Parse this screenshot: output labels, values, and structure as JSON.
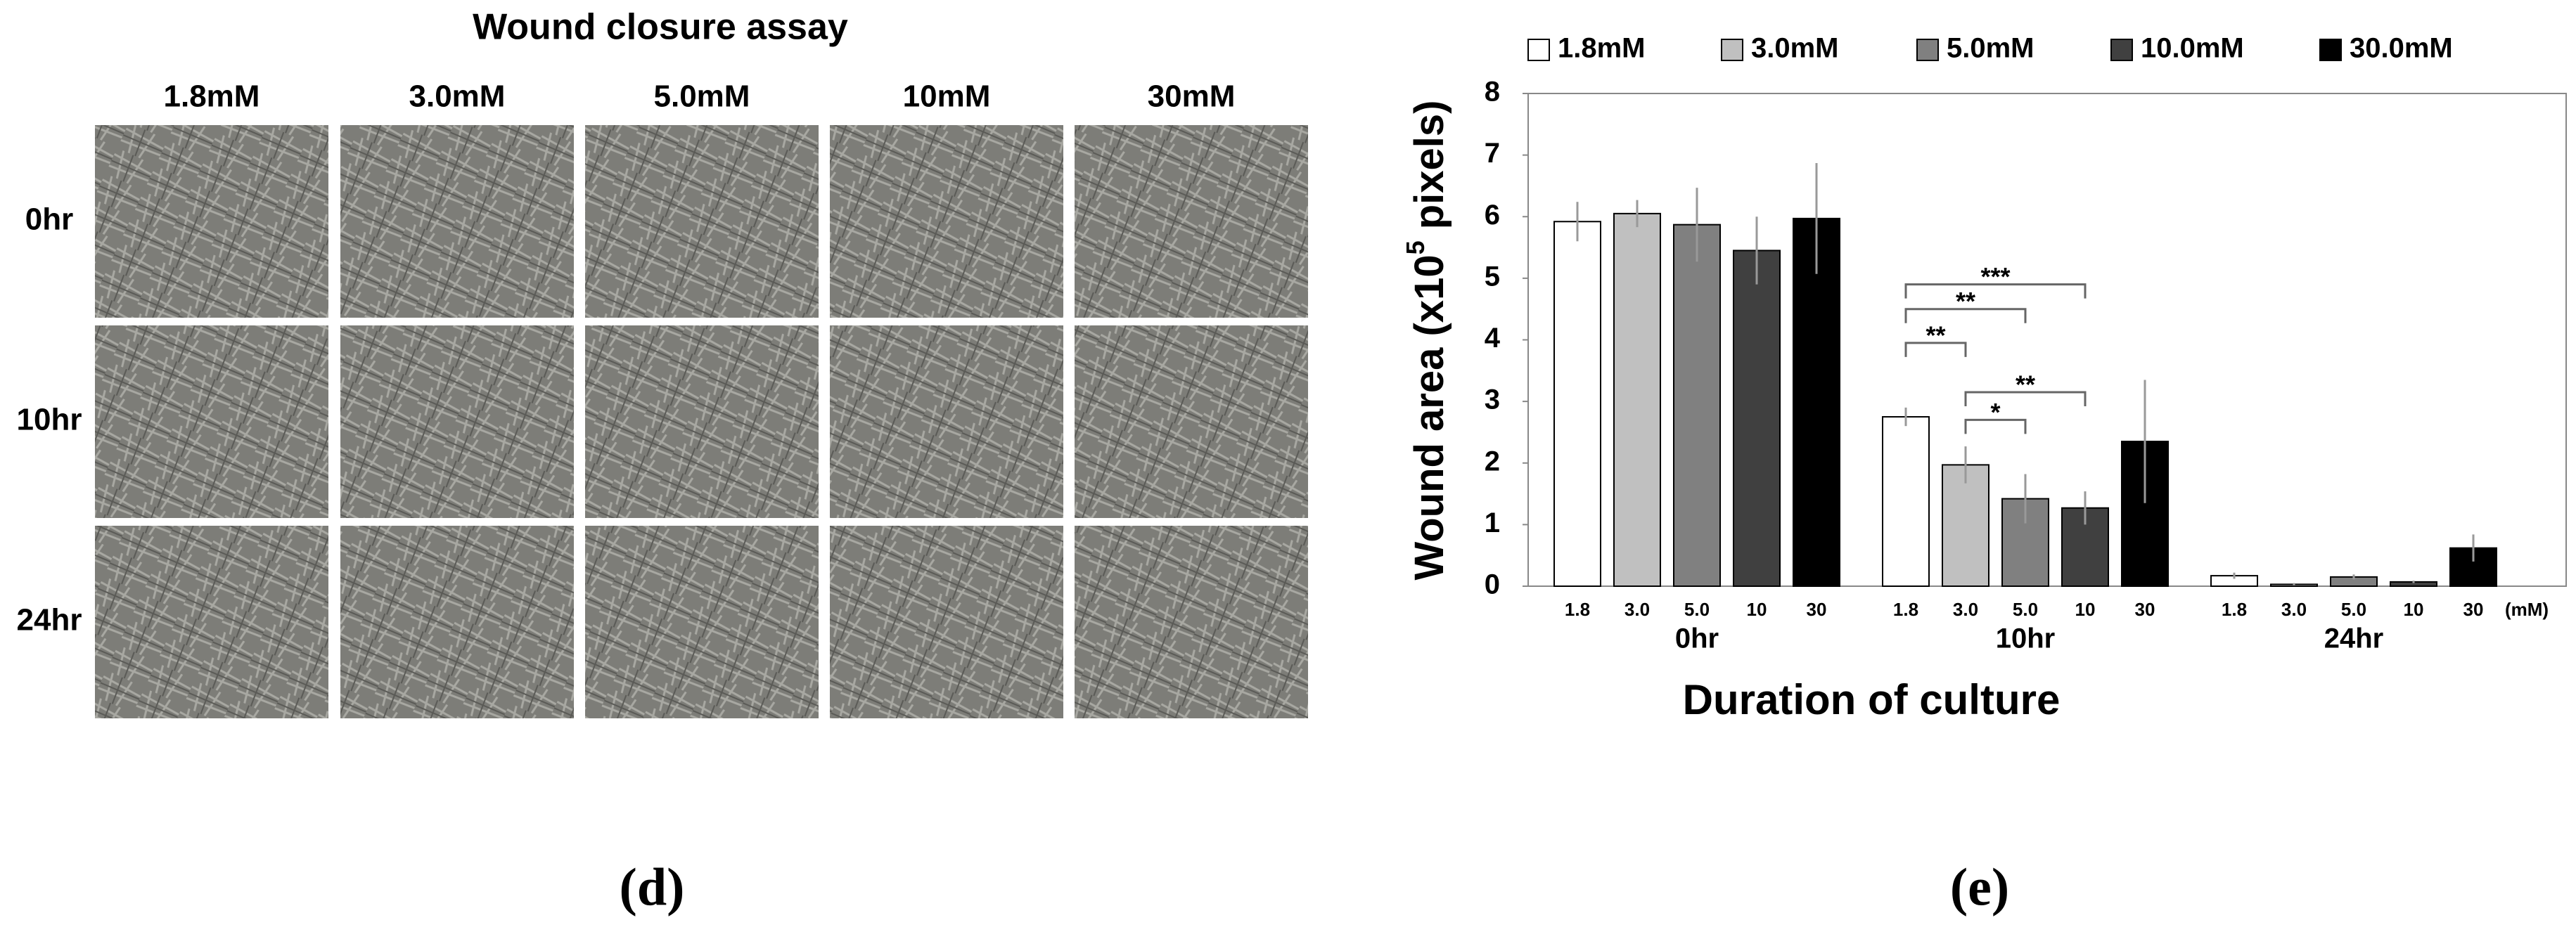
{
  "panel_d": {
    "title": "Wound closure assay",
    "columns": [
      "1.8mM",
      "3.0mM",
      "5.0mM",
      "10mM",
      "30mM"
    ],
    "rows": [
      "0hr",
      "10hr",
      "24hr"
    ],
    "caption": "(d)"
  },
  "chart_data": {
    "type": "bar",
    "ylabel": {
      "prefix": "Wound area (x10",
      "superscript": "5",
      "suffix": " pixels)"
    },
    "xlabel": "Duration of culture",
    "categories": [
      "0hr",
      "10hr",
      "24hr"
    ],
    "bar_labels": [
      "1.8",
      "3.0",
      "5.0",
      "10",
      "30"
    ],
    "unit_label": "(mM)",
    "series": [
      {
        "name": "1.8mM",
        "color": "#ffffff",
        "values": [
          5.92,
          2.75,
          0.17
        ],
        "errors": [
          0.32,
          0.15,
          0.05
        ]
      },
      {
        "name": "3.0mM",
        "color": "#c0c0c0",
        "values": [
          6.05,
          1.97,
          0.03
        ],
        "errors": [
          0.22,
          0.3,
          0.02
        ]
      },
      {
        "name": "5.0mM",
        "color": "#808080",
        "values": [
          5.87,
          1.42,
          0.15
        ],
        "errors": [
          0.6,
          0.4,
          0.04
        ]
      },
      {
        "name": "10.0mM",
        "color": "#404040",
        "values": [
          5.45,
          1.27,
          0.07
        ],
        "errors": [
          0.55,
          0.27,
          0.02
        ]
      },
      {
        "name": "30.0mM",
        "color": "#000000",
        "values": [
          5.97,
          2.35,
          0.62
        ],
        "errors": [
          0.9,
          1.0,
          0.22
        ]
      }
    ],
    "annotations": [
      {
        "group": "10hr",
        "between": [
          "1.8mM",
          "10.0mM"
        ],
        "label": "***"
      },
      {
        "group": "10hr",
        "between": [
          "1.8mM",
          "5.0mM"
        ],
        "label": "**"
      },
      {
        "group": "10hr",
        "between": [
          "1.8mM",
          "3.0mM"
        ],
        "label": "**"
      },
      {
        "group": "10hr",
        "between": [
          "3.0mM",
          "10.0mM"
        ],
        "label": "**"
      },
      {
        "group": "10hr",
        "between": [
          "3.0mM",
          "5.0mM"
        ],
        "label": "*"
      }
    ],
    "ylim": [
      0,
      8
    ],
    "yticks": [
      0,
      1,
      2,
      3,
      4,
      5,
      6,
      7,
      8
    ],
    "grid": false,
    "legend": "top",
    "panel_label": "(e)"
  }
}
